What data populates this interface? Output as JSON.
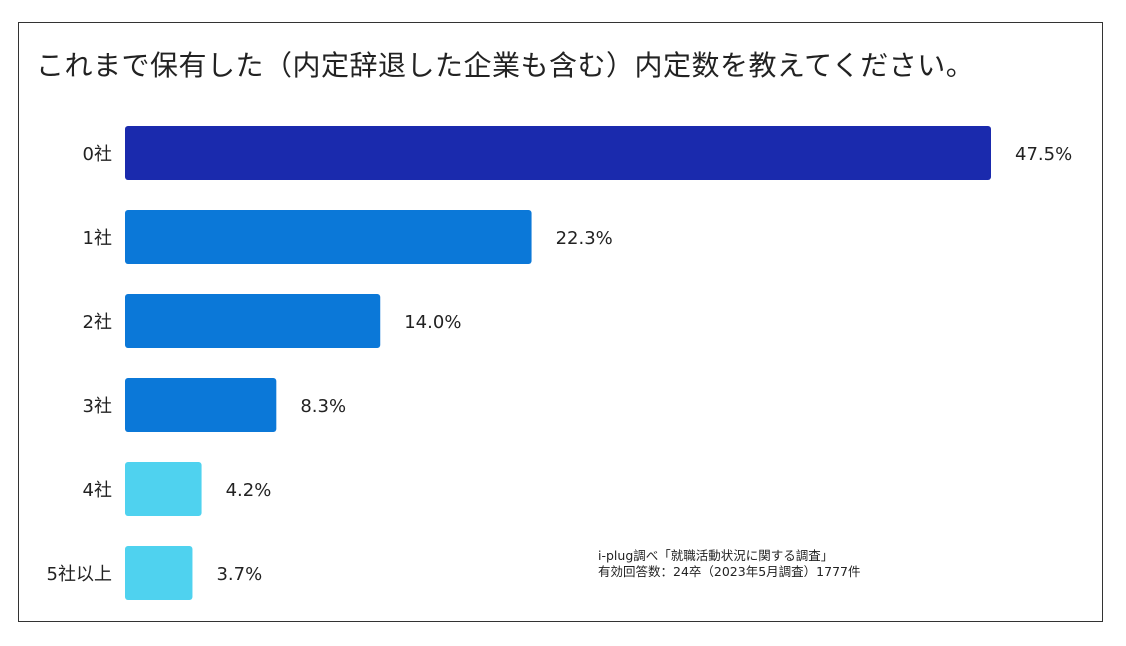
{
  "title": "これまで保有した（内定辞退した企業も含む）内定数を教えてください。",
  "chart_data": {
    "type": "bar",
    "orientation": "horizontal",
    "categories": [
      "0社",
      "1社",
      "2社",
      "3社",
      "4社",
      "5社以上"
    ],
    "values": [
      47.5,
      22.3,
      14.0,
      8.3,
      4.2,
      3.7
    ],
    "value_labels": [
      "47.5%",
      "22.3%",
      "14.0%",
      "8.3%",
      "4.2%",
      "3.7%"
    ],
    "unit": "%",
    "colors": [
      "#1a2aad",
      "#0b78d8",
      "#0b78d8",
      "#0b78d8",
      "#4fd2ef",
      "#4fd2ef"
    ],
    "grid": false,
    "legend": "none"
  },
  "source_note": {
    "line1": "i-plug調べ「就職活動状況に関する調査」",
    "line2": "有効回答数：24卒（2023年5月調査）1777件"
  }
}
